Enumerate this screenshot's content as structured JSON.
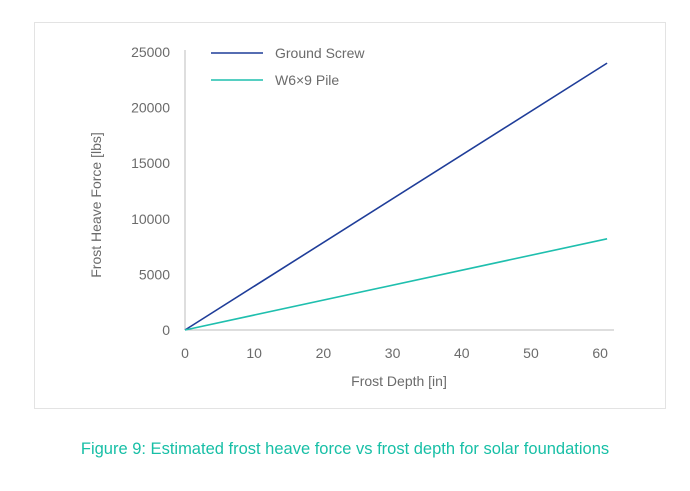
{
  "chart_data": {
    "type": "line",
    "xlabel": "Frost Depth [in]",
    "ylabel": "Frost Heave Force [lbs]",
    "xlim": [
      0,
      62
    ],
    "ylim": [
      0,
      25000
    ],
    "x_ticks": [
      0,
      10,
      20,
      30,
      40,
      50,
      60
    ],
    "y_ticks": [
      0,
      5000,
      10000,
      15000,
      20000,
      25000
    ],
    "grid": false,
    "legend_position": "top-left",
    "series": [
      {
        "name": "Ground Screw",
        "color": "#1f3d99",
        "x": [
          0,
          61
        ],
        "y": [
          0,
          24000
        ]
      },
      {
        "name": "W6×9 Pile",
        "color": "#1fbfae",
        "x": [
          0,
          61
        ],
        "y": [
          0,
          8200
        ]
      }
    ]
  },
  "caption": "Figure 9: Estimated frost heave force vs frost depth for solar foundations"
}
